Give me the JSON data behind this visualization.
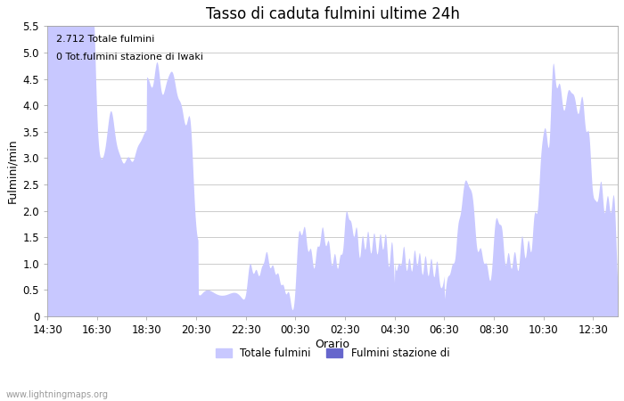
{
  "title": "Tasso di caduta fulmini ultime 24h",
  "xlabel": "Orario",
  "ylabel": "Fulmini/min",
  "ylim": [
    0,
    5.5
  ],
  "yticks": [
    0.0,
    0.5,
    1.0,
    1.5,
    2.0,
    2.5,
    3.0,
    3.5,
    4.0,
    4.5,
    5.0,
    5.5
  ],
  "xtick_labels": [
    "14:30",
    "16:30",
    "18:30",
    "20:30",
    "22:30",
    "00:30",
    "02:30",
    "04:30",
    "06:30",
    "08:30",
    "10:30",
    "12:30"
  ],
  "annotation_line1": "2.712 Totale fulmini",
  "annotation_line2": "0 Tot.fulmini stazione di Iwaki",
  "fill_color_light": "#c8c8ff",
  "fill_color_dark": "#6666cc",
  "legend_label1": "Totale fulmini",
  "legend_label2": "Fulmini stazione di",
  "watermark": "www.lightningmaps.org",
  "background_color": "#ffffff",
  "grid_color": "#cccccc",
  "title_fontsize": 12,
  "axis_fontsize": 9,
  "tick_fontsize": 8.5,
  "annot_fontsize": 8
}
